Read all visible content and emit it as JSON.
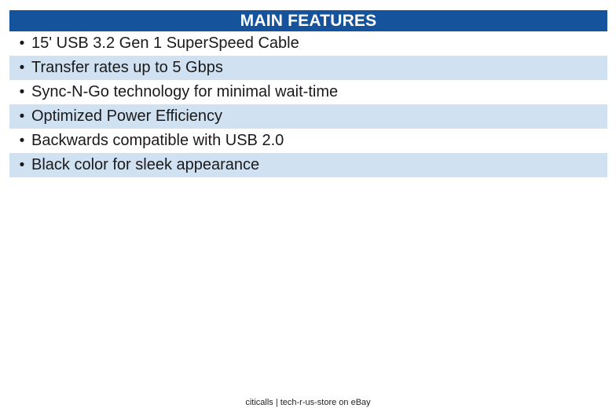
{
  "header": {
    "title": "MAIN FEATURES"
  },
  "features": [
    "15' USB 3.2 Gen 1 SuperSpeed Cable",
    "Transfer rates up to 5 Gbps",
    "Sync-N-Go technology for minimal wait-time",
    "Optimized Power Efficiency",
    "Backwards compatible with USB 2.0",
    "Black color for sleek appearance"
  ],
  "bullet_glyph": "•",
  "footer": {
    "text": "citicalls | tech-r-us-store on eBay"
  },
  "colors": {
    "header_bg": "#15549c",
    "header_text": "#ffffff",
    "row_alt_bg": "#d0e1f2",
    "body_text": "#1a1a1a"
  }
}
